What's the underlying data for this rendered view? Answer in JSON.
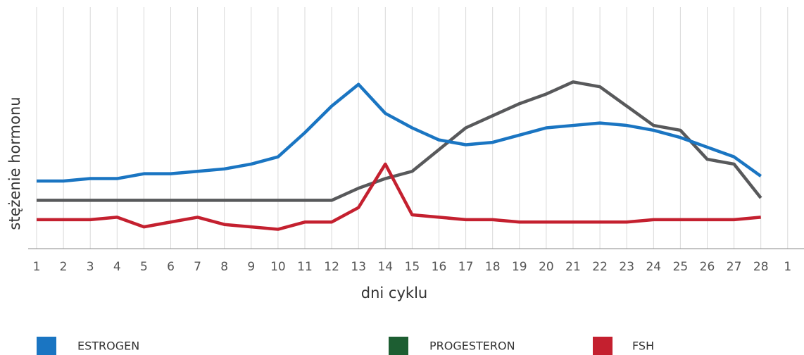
{
  "chart_data": {
    "type": "line",
    "xlabel": "dni cyklu",
    "ylabel": "stężenie hormonu",
    "categories": [
      "1",
      "2",
      "3",
      "4",
      "5",
      "6",
      "7",
      "8",
      "9",
      "10",
      "11",
      "12",
      "13",
      "14",
      "15",
      "16",
      "17",
      "18",
      "19",
      "20",
      "21",
      "22",
      "23",
      "24",
      "25",
      "26",
      "27",
      "28",
      "1"
    ],
    "ylim": [
      0,
      100
    ],
    "grid": true,
    "series": [
      {
        "name": "ESTROGEN",
        "color": "#1a75c2",
        "legend_color": "#1a75c2",
        "values": [
          28,
          28,
          29,
          29,
          31,
          31,
          32,
          33,
          35,
          38,
          48,
          59,
          68,
          56,
          50,
          45,
          43,
          44,
          47,
          50,
          51,
          52,
          51,
          49,
          46,
          42,
          38,
          30,
          null
        ]
      },
      {
        "name": "PROGESTERON",
        "color": "#58595b",
        "legend_color": "#1d5e32",
        "values": [
          20,
          20,
          20,
          20,
          20,
          20,
          20,
          20,
          20,
          20,
          20,
          20,
          25,
          29,
          32,
          41,
          50,
          55,
          60,
          64,
          69,
          67,
          59,
          51,
          49,
          37,
          35,
          21,
          null
        ]
      },
      {
        "name": "FSH",
        "color": "#c4202f",
        "legend_color": "#c4202f",
        "values": [
          12,
          12,
          12,
          13,
          9,
          11,
          13,
          10,
          9,
          8,
          11,
          11,
          17,
          35,
          14,
          13,
          12,
          12,
          11,
          11,
          11,
          11,
          11,
          12,
          12,
          12,
          12,
          13,
          null
        ]
      }
    ]
  }
}
